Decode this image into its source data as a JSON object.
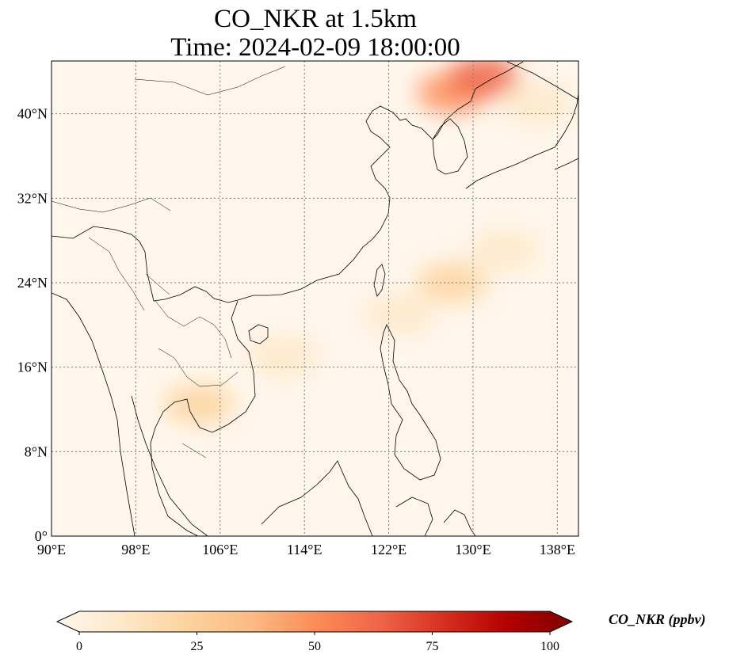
{
  "title": {
    "line1": "CO_NKR at 1.5km",
    "line2": "Time: 2024-02-09 18:00:00"
  },
  "map": {
    "extent": {
      "lon_min": 90,
      "lon_max": 140,
      "lat_min": 0,
      "lat_max": 45
    },
    "lon_ticks": [
      {
        "value": 90,
        "label": "90°E"
      },
      {
        "value": 98,
        "label": "98°E"
      },
      {
        "value": 106,
        "label": "106°E"
      },
      {
        "value": 114,
        "label": "114°E"
      },
      {
        "value": 122,
        "label": "122°E"
      },
      {
        "value": 130,
        "label": "130°E"
      },
      {
        "value": 138,
        "label": "138°E"
      }
    ],
    "lat_ticks": [
      {
        "value": 0,
        "label": "0°"
      },
      {
        "value": 8,
        "label": "8°N"
      },
      {
        "value": 16,
        "label": "16°N"
      },
      {
        "value": 24,
        "label": "24°N"
      },
      {
        "value": 32,
        "label": "32°N"
      },
      {
        "value": 40,
        "label": "40°N"
      }
    ],
    "gridlines": true,
    "coastline_color": "#000000",
    "field": "CO_NKR",
    "plumes": [
      {
        "lon": 104,
        "lat": 12.5,
        "value": 28
      },
      {
        "lon": 112,
        "lat": 17,
        "value": 14
      },
      {
        "lon": 123,
        "lat": 21,
        "value": 16
      },
      {
        "lon": 128,
        "lat": 24,
        "value": 20
      },
      {
        "lon": 133,
        "lat": 27,
        "value": 16
      },
      {
        "lon": 128,
        "lat": 42,
        "value": 45
      },
      {
        "lon": 131,
        "lat": 43.5,
        "value": 62
      },
      {
        "lon": 136,
        "lat": 41,
        "value": 14
      }
    ]
  },
  "colorbar": {
    "label": "CO_NKR (ppbv)",
    "min": 0,
    "max": 100,
    "ticks": [
      {
        "value": 0,
        "label": "0"
      },
      {
        "value": 25,
        "label": "25"
      },
      {
        "value": 50,
        "label": "50"
      },
      {
        "value": 75,
        "label": "75"
      },
      {
        "value": 100,
        "label": "100"
      }
    ],
    "extend": "both",
    "colormap": "OrRd",
    "colors": [
      "#fff7ec",
      "#fee8c8",
      "#fdd49e",
      "#fdbb84",
      "#fc8d59",
      "#ef6548",
      "#d7301f",
      "#b30000",
      "#7f0000"
    ]
  }
}
